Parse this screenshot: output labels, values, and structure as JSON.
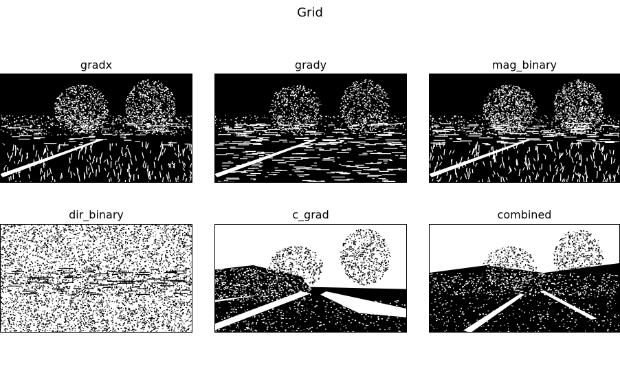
{
  "figure": {
    "title": "Grid",
    "panels": [
      {
        "title": "gradx",
        "style": "edges-x"
      },
      {
        "title": "grady",
        "style": "edges-y"
      },
      {
        "title": "mag_binary",
        "style": "edges-mag"
      },
      {
        "title": "dir_binary",
        "style": "noise-dense"
      },
      {
        "title": "c_grad",
        "style": "color-thresh"
      },
      {
        "title": "combined",
        "style": "combined"
      }
    ]
  },
  "colors": {
    "foreground": "#ffffff",
    "background": "#000000",
    "page": "#ffffff"
  }
}
